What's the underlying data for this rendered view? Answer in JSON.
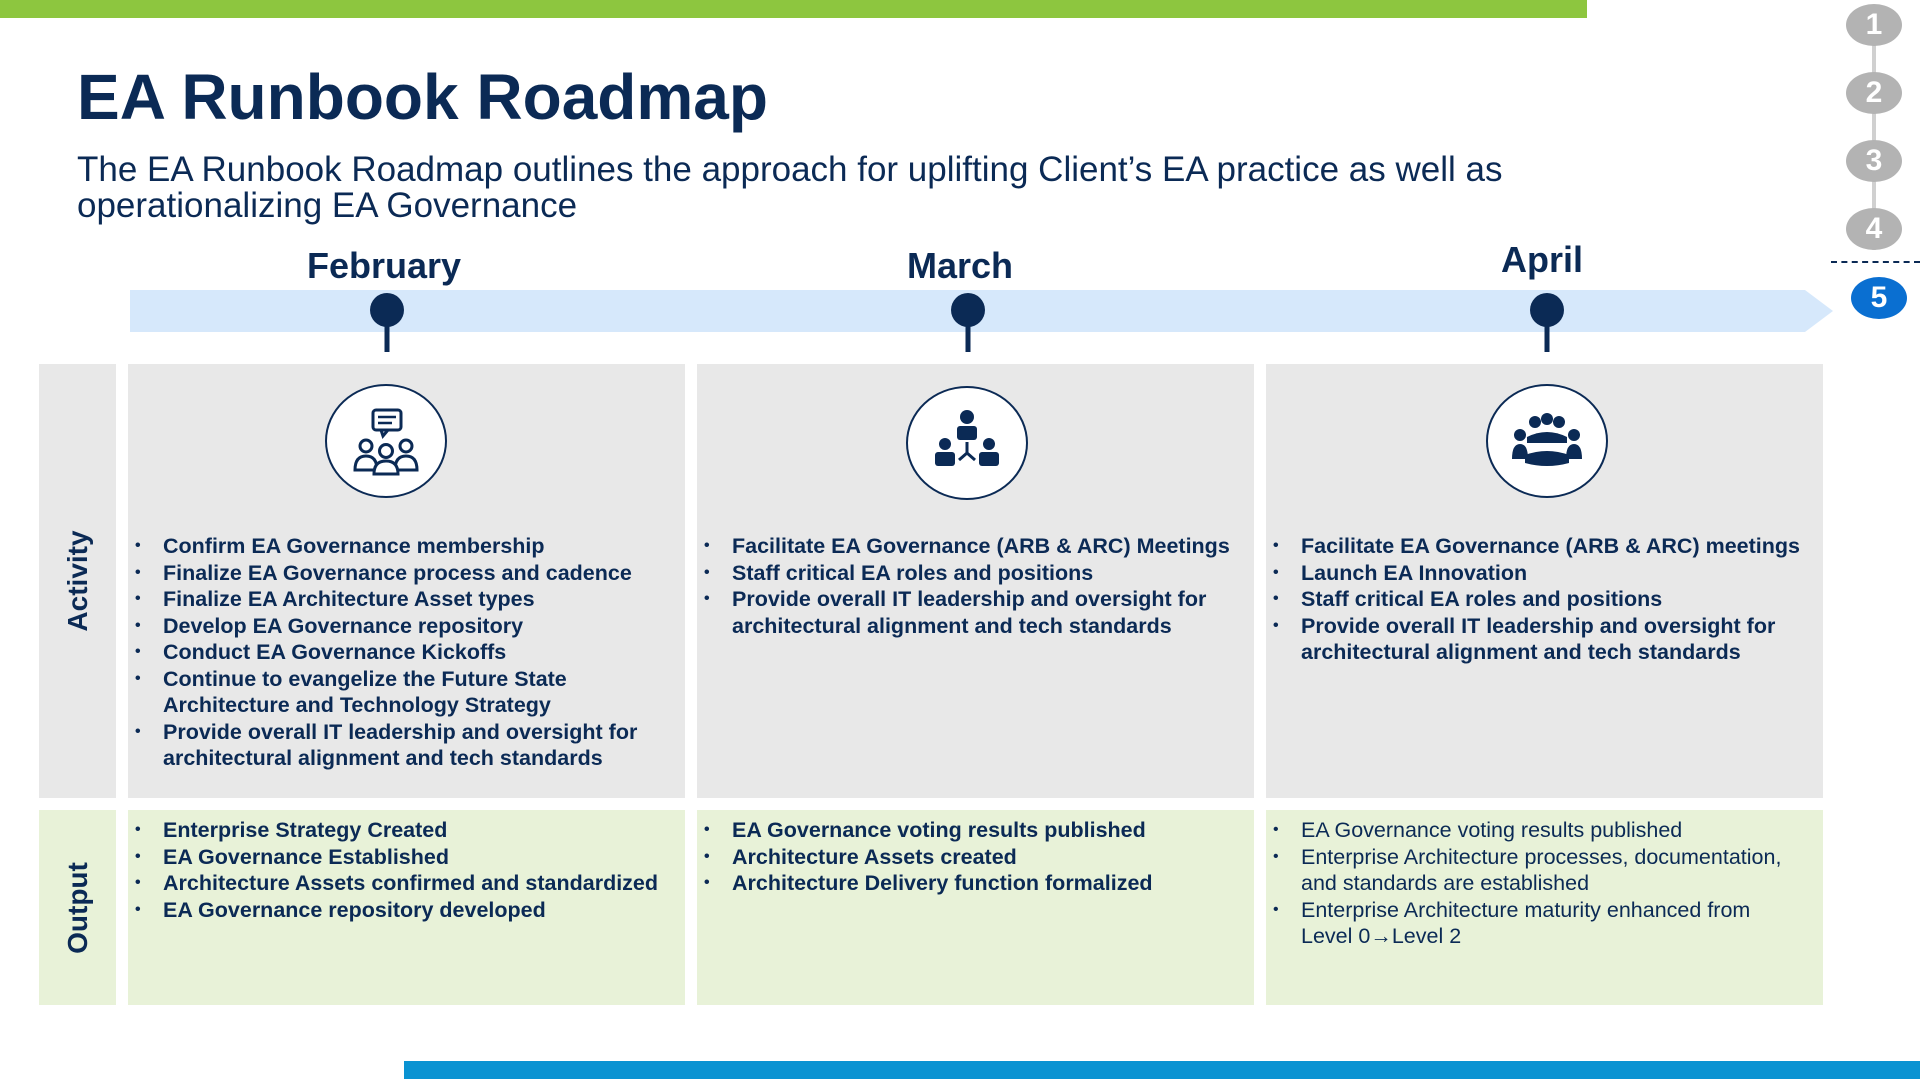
{
  "title": "EA Runbook Roadmap",
  "subtitle": "The EA Runbook Roadmap outlines the approach for uplifting Client’s EA practice as well as operationalizing EA Governance",
  "steps": [
    "1",
    "2",
    "3",
    "4",
    "5"
  ],
  "active_step": "5",
  "row_labels": {
    "activity": "Activity",
    "output": "Output"
  },
  "months": [
    {
      "name": "February",
      "icon": "discussion-group-icon",
      "activities": [
        "Confirm EA Governance membership",
        "Finalize EA Governance process and cadence",
        "Finalize EA Architecture Asset types",
        "Develop EA Governance repository",
        "Conduct EA Governance Kickoffs",
        "Continue to evangelize the Future State Architecture and Technology Strategy",
        "Provide overall IT leadership and oversight for architectural alignment and tech standards"
      ],
      "outputs": [
        "Enterprise Strategy Created",
        "EA Governance Established",
        "Architecture Assets confirmed and standardized",
        "EA Governance repository developed"
      ]
    },
    {
      "name": "March",
      "icon": "org-hierarchy-icon",
      "activities": [
        "Facilitate EA Governance (ARB & ARC) Meetings",
        "Staff critical EA roles and positions",
        "Provide overall IT leadership and oversight for architectural alignment and tech standards"
      ],
      "outputs": [
        "EA Governance voting results published",
        "Architecture Assets created",
        "Architecture Delivery function formalized"
      ]
    },
    {
      "name": "April",
      "icon": "team-meeting-icon",
      "activities": [
        "Facilitate EA Governance (ARB & ARC) meetings",
        "Launch EA Innovation",
        "Staff critical EA roles and positions",
        "Provide overall IT leadership and oversight for architectural alignment and tech standards"
      ],
      "outputs": [
        "EA Governance voting results published",
        "Enterprise Architecture processes, documentation, and standards are established",
        "Enterprise Architecture maturity enhanced from Level 0→Level 2"
      ]
    }
  ],
  "colors": {
    "navy": "#0b2a55",
    "top_bar": "#8dc63f",
    "bottom_bar": "#0a93d2",
    "timeline": "#d6e8fb",
    "activity_bg": "#e8e8e8",
    "output_bg": "#e8f2d8",
    "step_inactive": "#b3b3b3",
    "step_active": "#0a6fd1"
  }
}
